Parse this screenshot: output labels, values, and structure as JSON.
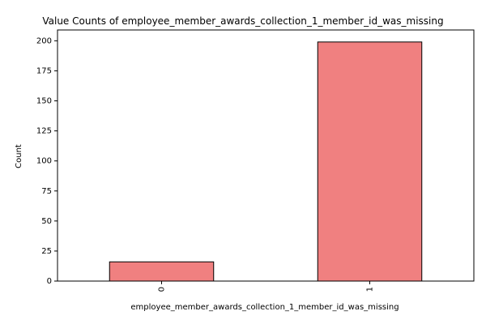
{
  "chart_data": {
    "type": "bar",
    "title": "Value Counts of employee_member_awards_collection_1_member_id_was_missing",
    "xlabel": "employee_member_awards_collection_1_member_id_was_missing",
    "ylabel": "Count",
    "categories": [
      "0",
      "1"
    ],
    "values": [
      16,
      199
    ],
    "ylim": [
      0,
      209
    ],
    "yticks": [
      0,
      25,
      50,
      75,
      100,
      125,
      150,
      175,
      200
    ],
    "bar_color": "#f08080",
    "edge_color": "#000000",
    "grid": false,
    "legend": "none"
  }
}
